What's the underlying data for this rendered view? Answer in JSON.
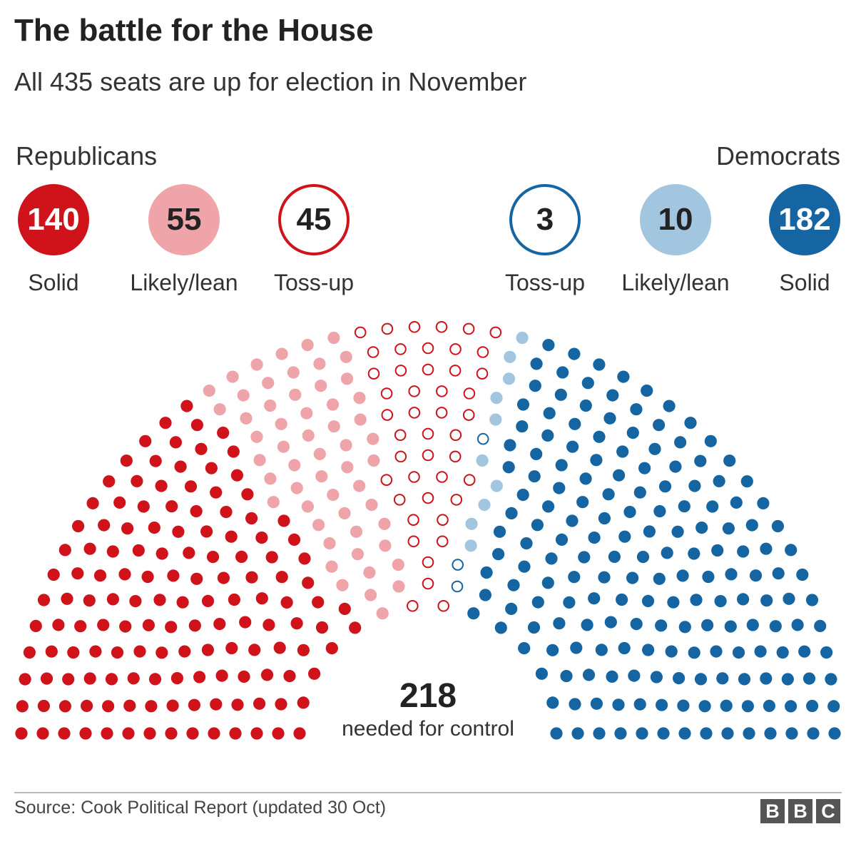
{
  "header": {
    "title": "The battle for the House",
    "subtitle": "All 435 seats are up for election in November"
  },
  "legend": {
    "republicans_label": "Republicans",
    "democrats_label": "Democrats"
  },
  "control": {
    "number": "218",
    "text": "needed for control"
  },
  "footer": {
    "source": "Source: Cook Political Report (updated 30 Oct)",
    "logo_letters": [
      "B",
      "B",
      "C"
    ]
  },
  "colors": {
    "rep_solid": "#d0121b",
    "rep_lean": "#eea4a8",
    "rep_tossup": "#d0121b",
    "dem_tossup": "#1565a3",
    "dem_lean": "#a3c6e0",
    "dem_solid": "#1565a3"
  },
  "chart_data": {
    "type": "parliament",
    "title": "The battle for the House",
    "subtitle": "All 435 seats are up for election in November",
    "total_seats": 435,
    "majority": 218,
    "categories": [
      {
        "party": "Republicans",
        "label": "Solid",
        "seats": 140,
        "value_text": "140",
        "style": "filled",
        "color": "#d0121b"
      },
      {
        "party": "Republicans",
        "label": "Likely/lean",
        "seats": 55,
        "value_text": "55",
        "style": "filled",
        "color": "#eea4a8"
      },
      {
        "party": "Republicans",
        "label": "Toss-up",
        "seats": 45,
        "value_text": "45",
        "style": "outline",
        "color": "#d0121b"
      },
      {
        "party": "Democrats",
        "label": "Toss-up",
        "seats": 3,
        "value_text": "3",
        "style": "outline",
        "color": "#1565a3"
      },
      {
        "party": "Democrats",
        "label": "Likely/lean",
        "seats": 10,
        "value_text": "10",
        "style": "filled",
        "color": "#a3c6e0"
      },
      {
        "party": "Democrats",
        "label": "Solid",
        "seats": 182,
        "value_text": "182",
        "style": "filled",
        "color": "#1565a3"
      }
    ]
  }
}
